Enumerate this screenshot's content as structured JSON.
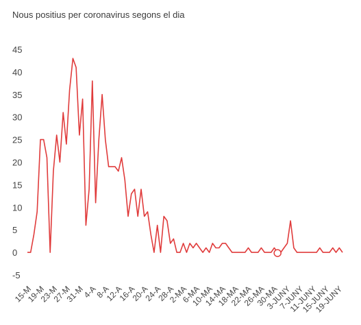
{
  "title": "Nous positius per coronavirus segons el dia",
  "chart_data": {
    "type": "line",
    "title": "Nous positius per coronavirus segons el dia",
    "xlabel": "",
    "ylabel": "",
    "ylim": [
      -5,
      45
    ],
    "yticks": [
      45,
      40,
      35,
      30,
      25,
      20,
      15,
      10,
      5,
      0,
      -5
    ],
    "grid": false,
    "x_tick_labels": [
      "15-M",
      "19-M",
      "23-M",
      "27-M",
      "31-M",
      "4-A",
      "8-A",
      "12-A",
      "16-A",
      "20-A",
      "24-A",
      "28-A",
      "2-MA",
      "6-MA",
      "10-MA",
      "14-MA",
      "18-MA",
      "22-MA",
      "26-MA",
      "30-MA",
      "3-JUNY",
      "7-JUNY",
      "11-JUNY",
      "15-JUNY",
      "19-JUNY"
    ],
    "line_color": "#e03b3b",
    "series": [
      {
        "values": [
          0,
          0,
          4,
          9,
          25,
          25,
          21,
          0,
          18,
          26,
          20,
          31,
          24,
          36,
          43,
          41,
          26,
          34,
          6,
          14,
          38,
          11,
          25,
          35,
          25,
          19,
          19,
          19,
          18,
          21,
          16,
          8,
          13,
          14,
          8,
          14,
          8,
          9,
          4,
          0,
          6,
          0,
          8,
          7,
          2,
          3,
          0,
          0,
          2,
          0,
          2,
          1,
          2,
          1,
          0,
          1,
          0,
          2,
          1,
          1,
          2,
          2,
          1,
          0,
          0,
          0,
          0,
          0,
          1,
          0,
          0,
          0,
          1,
          0,
          0,
          0,
          1,
          0,
          0,
          1,
          2,
          7,
          1,
          0,
          0,
          0,
          0,
          0,
          0,
          0,
          1,
          0,
          0,
          0,
          1,
          0,
          1,
          0
        ]
      }
    ],
    "marker": {
      "index": 77,
      "value": 0
    }
  }
}
